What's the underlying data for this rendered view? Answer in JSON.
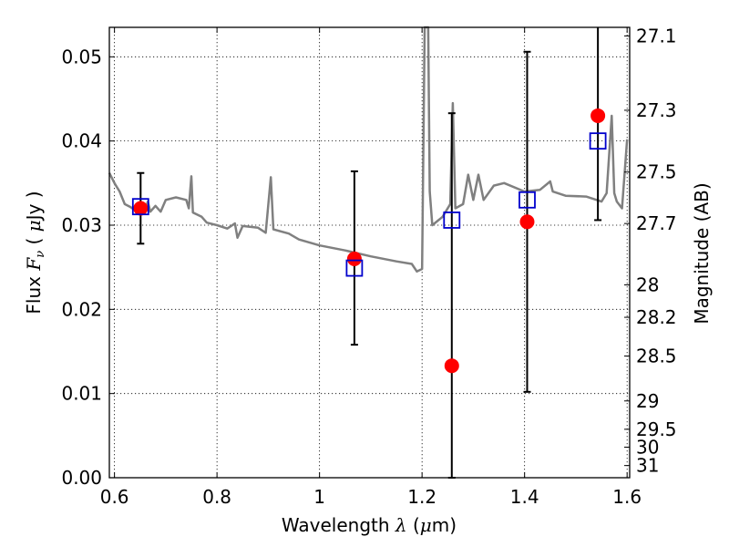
{
  "chart_data": {
    "type": "scatter",
    "xlabel": {
      "prefix": "Wavelength",
      "symbol": "λ",
      "unit_open": "(",
      "unit_mu": "μ",
      "unit_rest": "m)"
    },
    "ylabel": {
      "prefix": "Flux",
      "symbol": "F",
      "sub": "ν",
      "unit_open": "(",
      "unit_mu": "μ",
      "unit_rest": "Jy )"
    },
    "y2label": "Magnitude (AB)",
    "xlim": [
      0.59,
      1.605
    ],
    "ylim": [
      0.0,
      0.0535
    ],
    "grid": true,
    "x_ticks": [
      {
        "value": 0.6,
        "label": "0.6"
      },
      {
        "value": 0.8,
        "label": "0.8"
      },
      {
        "value": 1.0,
        "label": "1"
      },
      {
        "value": 1.2,
        "label": "1.2"
      },
      {
        "value": 1.4,
        "label": "1.4"
      },
      {
        "value": 1.6,
        "label": "1.6"
      }
    ],
    "y_ticks": [
      {
        "value": 0.0,
        "label": "0.00"
      },
      {
        "value": 0.01,
        "label": "0.01"
      },
      {
        "value": 0.02,
        "label": "0.02"
      },
      {
        "value": 0.03,
        "label": "0.03"
      },
      {
        "value": 0.04,
        "label": "0.04"
      },
      {
        "value": 0.05,
        "label": "0.05"
      }
    ],
    "mag_ticks": [
      {
        "value": 27.1,
        "label": "27.1"
      },
      {
        "value": 27.3,
        "label": "27.3"
      },
      {
        "value": 27.5,
        "label": "27.5"
      },
      {
        "value": 27.7,
        "label": "27.7"
      },
      {
        "value": 28.0,
        "label": "28"
      },
      {
        "value": 28.2,
        "label": "28.2"
      },
      {
        "value": 28.5,
        "label": "28.5"
      },
      {
        "value": 29.0,
        "label": "29"
      },
      {
        "value": 29.5,
        "label": "29.5"
      },
      {
        "value": 30.0,
        "label": "30"
      },
      {
        "value": 31.0,
        "label": "31"
      }
    ],
    "series": [
      {
        "kind": "model_spectrum",
        "color": "#808080",
        "points": [
          [
            0.59,
            0.0362
          ],
          [
            0.6,
            0.035
          ],
          [
            0.61,
            0.034
          ],
          [
            0.62,
            0.0325
          ],
          [
            0.63,
            0.0322
          ],
          [
            0.64,
            0.0318
          ],
          [
            0.65,
            0.0322
          ],
          [
            0.66,
            0.0319
          ],
          [
            0.665,
            0.0328
          ],
          [
            0.67,
            0.0316
          ],
          [
            0.68,
            0.0323
          ],
          [
            0.69,
            0.0316
          ],
          [
            0.7,
            0.033
          ],
          [
            0.72,
            0.0333
          ],
          [
            0.74,
            0.033
          ],
          [
            0.745,
            0.032
          ],
          [
            0.75,
            0.0358
          ],
          [
            0.753,
            0.0315
          ],
          [
            0.77,
            0.031
          ],
          [
            0.78,
            0.0303
          ],
          [
            0.8,
            0.03
          ],
          [
            0.82,
            0.0296
          ],
          [
            0.835,
            0.0302
          ],
          [
            0.84,
            0.0285
          ],
          [
            0.85,
            0.0299
          ],
          [
            0.88,
            0.0297
          ],
          [
            0.895,
            0.0291
          ],
          [
            0.905,
            0.0357
          ],
          [
            0.91,
            0.0295
          ],
          [
            0.94,
            0.029
          ],
          [
            0.96,
            0.0283
          ],
          [
            1.0,
            0.0276
          ],
          [
            1.05,
            0.027
          ],
          [
            1.1,
            0.0263
          ],
          [
            1.15,
            0.0257
          ],
          [
            1.18,
            0.0254
          ],
          [
            1.19,
            0.0245
          ],
          [
            1.2,
            0.0248
          ],
          [
            1.205,
            0.0535
          ],
          [
            1.212,
            0.0535
          ],
          [
            1.215,
            0.034
          ],
          [
            1.22,
            0.03
          ],
          [
            1.24,
            0.031
          ],
          [
            1.255,
            0.0325
          ],
          [
            1.26,
            0.0445
          ],
          [
            1.265,
            0.032
          ],
          [
            1.28,
            0.0325
          ],
          [
            1.29,
            0.036
          ],
          [
            1.3,
            0.033
          ],
          [
            1.31,
            0.036
          ],
          [
            1.32,
            0.033
          ],
          [
            1.34,
            0.0347
          ],
          [
            1.36,
            0.035
          ],
          [
            1.4,
            0.034
          ],
          [
            1.43,
            0.0342
          ],
          [
            1.45,
            0.0352
          ],
          [
            1.455,
            0.034
          ],
          [
            1.48,
            0.0335
          ],
          [
            1.52,
            0.0334
          ],
          [
            1.55,
            0.0328
          ],
          [
            1.56,
            0.0338
          ],
          [
            1.57,
            0.043
          ],
          [
            1.575,
            0.0338
          ],
          [
            1.58,
            0.0328
          ],
          [
            1.59,
            0.032
          ],
          [
            1.6,
            0.0402
          ]
        ]
      },
      {
        "kind": "observed",
        "marker": "circle",
        "color": "#ff0000",
        "x": [
          0.651,
          1.068,
          1.258,
          1.405,
          1.543
        ],
        "y": [
          0.032,
          0.026,
          0.0133,
          0.0304,
          0.043
        ],
        "yerr_low": [
          0.0042,
          0.0102,
          0.0133,
          0.0202,
          0.0124
        ],
        "yerr_high": [
          0.0042,
          0.0104,
          0.03,
          0.0202,
          0.0124
        ]
      },
      {
        "kind": "model_photometry",
        "marker": "open-square",
        "color": "#0000cc",
        "x": [
          0.651,
          1.068,
          1.258,
          1.405,
          1.543
        ],
        "y": [
          0.0322,
          0.0249,
          0.0306,
          0.033,
          0.04
        ]
      }
    ]
  }
}
